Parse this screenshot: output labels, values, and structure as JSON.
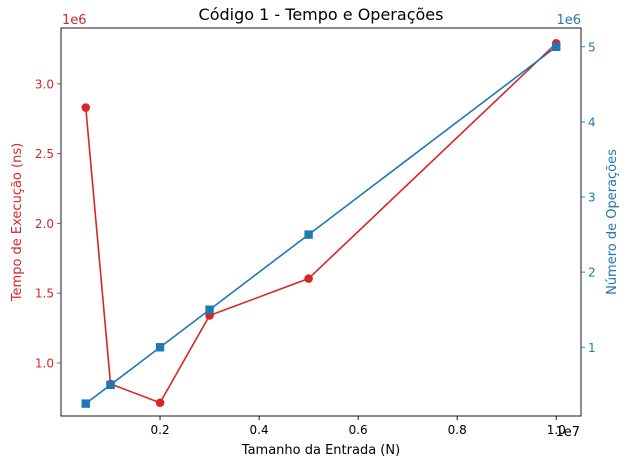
{
  "chart_data": {
    "type": "line",
    "title": "Código 1 - Tempo e Operações",
    "xlabel": "Tamanho da Entrada (N)",
    "x_multiplier": "1e7",
    "xlim": [
      0,
      10500000
    ],
    "xticks": [
      2000000,
      4000000,
      6000000,
      8000000,
      10000000
    ],
    "xtick_labels": [
      "0.2",
      "0.4",
      "0.6",
      "0.8",
      "1.0"
    ],
    "x": [
      500000,
      1000000,
      2000000,
      3000000,
      5000000,
      10000000
    ],
    "left_axis": {
      "label": "Tempo de Execução (ns)",
      "multiplier": "1e6",
      "color": "#d62728",
      "ylim": [
        620000,
        3400000
      ],
      "ticks": [
        1000000,
        1500000,
        2000000,
        2500000,
        3000000
      ],
      "tick_labels": [
        "1.0",
        "1.5",
        "2.0",
        "2.5",
        "3.0"
      ]
    },
    "right_axis": {
      "label": "Número de Operações",
      "multiplier": "1e6",
      "color": "#1f77b4",
      "ylim": [
        85000,
        5250000
      ],
      "ticks": [
        1000000,
        2000000,
        3000000,
        4000000,
        5000000
      ],
      "tick_labels": [
        "1",
        "2",
        "3",
        "4",
        "5"
      ]
    },
    "series": [
      {
        "axis": "left",
        "marker": "circle",
        "color": "#d62728",
        "values": [
          2830000,
          850000,
          715000,
          1340000,
          1605000,
          3290000
        ]
      },
      {
        "axis": "right",
        "marker": "square",
        "color": "#1f77b4",
        "values": [
          250000,
          500000,
          1000000,
          1500000,
          2500000,
          5000000
        ]
      }
    ],
    "grid": false,
    "legend": "none"
  }
}
